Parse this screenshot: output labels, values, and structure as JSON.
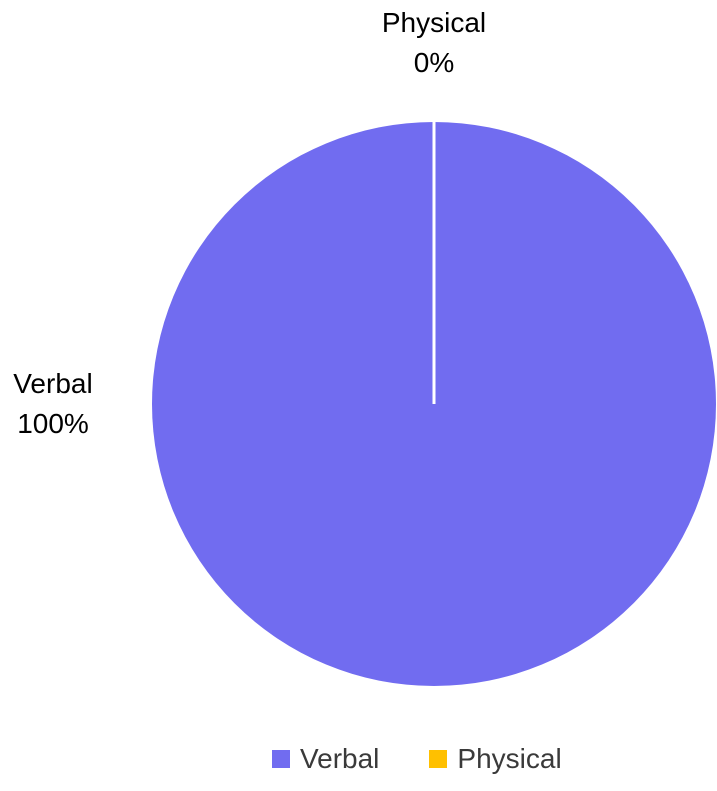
{
  "chart_data": {
    "type": "pie",
    "categories": [
      "Verbal",
      "Physical"
    ],
    "values": [
      100,
      0
    ],
    "data_labels": [
      {
        "category": "Verbal",
        "value": "100%"
      },
      {
        "category": "Physical",
        "value": "0%"
      }
    ],
    "colors": [
      "#716cf0",
      "#ffc000"
    ],
    "legend_position": "bottom"
  }
}
